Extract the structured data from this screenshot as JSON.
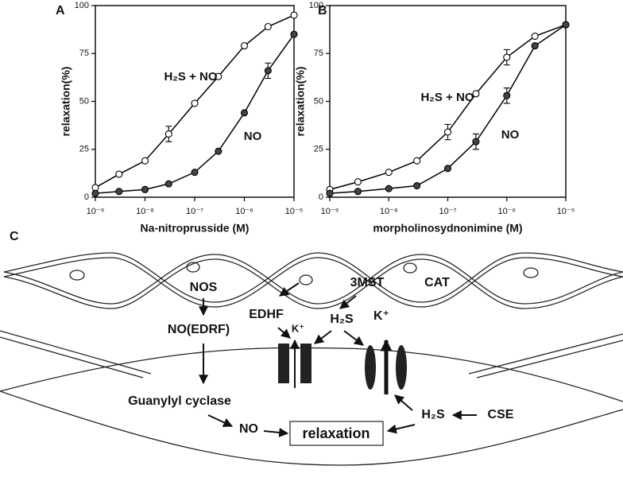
{
  "chart_data": [
    {
      "type": "line",
      "panel": "A",
      "xlabel": "Na-nitroprusside (M)",
      "ylabel": "relaxation(%)",
      "xscale": "log",
      "x": [
        1e-09,
        3e-09,
        1e-08,
        3e-08,
        1e-07,
        3e-07,
        1e-06,
        3e-06,
        1e-05
      ],
      "xlim": [
        1e-09,
        1e-05
      ],
      "xticks": [
        {
          "value": 1e-09,
          "label": "10⁻⁹"
        },
        {
          "value": 1e-08,
          "label": "10⁻⁸"
        },
        {
          "value": 1e-07,
          "label": "10⁻⁷"
        },
        {
          "value": 1e-06,
          "label": "10⁻⁶"
        },
        {
          "value": 1e-05,
          "label": "10⁻⁵"
        }
      ],
      "ylim": [
        0,
        100
      ],
      "yticks": [
        0,
        25,
        50,
        75,
        100
      ],
      "series": [
        {
          "name": "H₂S + NO",
          "color": "#000000",
          "marker_fill": "#ffffff",
          "values": [
            5,
            12,
            19,
            33,
            49,
            63,
            79,
            89,
            95
          ],
          "errors": [
            null,
            null,
            null,
            4,
            null,
            null,
            null,
            null,
            null
          ]
        },
        {
          "name": "NO",
          "color": "#000000",
          "marker_fill": "#444444",
          "values": [
            2,
            3,
            4,
            7,
            13,
            24,
            44,
            66,
            85
          ],
          "errors": [
            null,
            null,
            null,
            null,
            null,
            null,
            null,
            4,
            null
          ]
        }
      ]
    },
    {
      "type": "line",
      "panel": "B",
      "xlabel": "morpholinosydnonimine (M)",
      "ylabel": "relaxation(%)",
      "xscale": "log",
      "x": [
        1e-09,
        3e-09,
        1e-08,
        3e-08,
        1e-07,
        3e-07,
        1e-06,
        3e-06,
        1e-05
      ],
      "xlim": [
        1e-09,
        1e-05
      ],
      "xticks": [
        {
          "value": 1e-09,
          "label": "10⁻⁹"
        },
        {
          "value": 1e-08,
          "label": "10⁻⁸"
        },
        {
          "value": 1e-07,
          "label": "10⁻⁷"
        },
        {
          "value": 1e-06,
          "label": "10⁻⁶"
        },
        {
          "value": 1e-05,
          "label": "10⁻⁵"
        }
      ],
      "ylim": [
        0,
        100
      ],
      "yticks": [
        0,
        25,
        50,
        75,
        100
      ],
      "series": [
        {
          "name": "H₂S + NO",
          "color": "#000000",
          "marker_fill": "#ffffff",
          "values": [
            4,
            8,
            13,
            19,
            34,
            54,
            73,
            84,
            90
          ],
          "errors": [
            null,
            null,
            null,
            null,
            4,
            null,
            4,
            null,
            null
          ]
        },
        {
          "name": "NO",
          "color": "#000000",
          "marker_fill": "#444444",
          "values": [
            2,
            3,
            4.5,
            6,
            15,
            29,
            53,
            79,
            90
          ],
          "errors": [
            null,
            null,
            null,
            null,
            null,
            4,
            4,
            null,
            null
          ]
        }
      ]
    }
  ],
  "diagram": {
    "panel": "C",
    "nos": "NOS",
    "no_edrf": "NO(EDRF)",
    "guanylyl": "Guanylyl cyclase",
    "no": "NO",
    "relaxation": "relaxation",
    "edhf": "EDHF",
    "k1": "K⁺",
    "h2s_1": "H₂S",
    "mst": "3MST",
    "cat": "CAT",
    "k2": "K⁺",
    "h2s_2": "H₂S",
    "cse": "CSE"
  }
}
